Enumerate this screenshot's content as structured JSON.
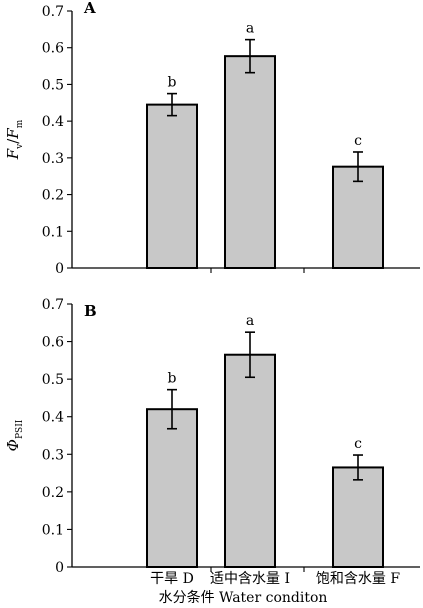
{
  "chart_data": [
    {
      "type": "bar",
      "panel_label": "A",
      "ylabel_main": "F",
      "ylabel_main_sub": "v",
      "ylabel_sep": "/",
      "ylabel_denom": "F",
      "ylabel_denom_sub": "m",
      "ylim": [
        0,
        0.7
      ],
      "yticks": [
        0,
        0.1,
        0.2,
        0.3,
        0.4,
        0.5,
        0.6,
        0.7
      ],
      "ytick_labels": [
        "0",
        "0.1",
        "0.2",
        "0.3",
        "0.4",
        "0.5",
        "0.6",
        "0.7"
      ],
      "values": [
        0.445,
        0.577,
        0.276
      ],
      "errors": [
        0.03,
        0.045,
        0.04
      ],
      "significance": [
        "b",
        "a",
        "c"
      ]
    },
    {
      "type": "bar",
      "panel_label": "B",
      "ylabel_main": "Φ",
      "ylabel_main_sub": "PSII",
      "ylim": [
        0,
        0.7
      ],
      "yticks": [
        0,
        0.1,
        0.2,
        0.3,
        0.4,
        0.5,
        0.6,
        0.7
      ],
      "ytick_labels": [
        "0",
        "0.1",
        "0.2",
        "0.3",
        "0.4",
        "0.5",
        "0.6",
        "0.7"
      ],
      "values": [
        0.42,
        0.565,
        0.265
      ],
      "errors": [
        0.052,
        0.06,
        0.033
      ],
      "significance": [
        "b",
        "a",
        "c"
      ]
    }
  ],
  "categories": [
    "干旱 D",
    "适中含水量 I",
    "饱和含水量 F"
  ],
  "xlabel": "水分条件 Water conditon",
  "colors": {
    "bar_fill": "#c8c8c8",
    "bar_stroke": "#000000"
  }
}
